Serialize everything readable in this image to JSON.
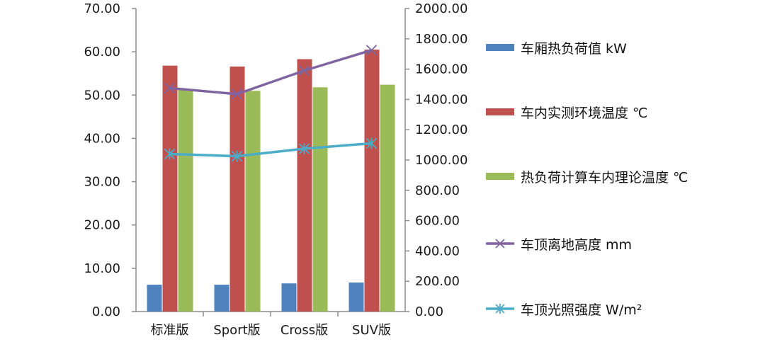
{
  "chart_data": {
    "type": "bar",
    "title": "",
    "categories": [
      "标准版",
      "Sport版",
      "Cross版",
      "SUV版"
    ],
    "y_left": {
      "ylim": [
        0,
        70
      ],
      "ticks": [
        "0.00",
        "10.00",
        "20.00",
        "30.00",
        "40.00",
        "50.00",
        "60.00",
        "70.00"
      ]
    },
    "y_right": {
      "ylim": [
        0,
        2000
      ],
      "ticks": [
        "0.00",
        "200.00",
        "400.00",
        "600.00",
        "800.00",
        "1000.00",
        "1200.00",
        "1400.00",
        "1600.00",
        "1800.00",
        "2000.00"
      ]
    },
    "series": [
      {
        "name": "车厢热负荷值 kW",
        "type": "bar",
        "axis": "left",
        "color": "#4f81bd",
        "values": [
          6.2,
          6.2,
          6.5,
          6.7
        ]
      },
      {
        "name": "车内实测环境温度 ℃",
        "type": "bar",
        "axis": "left",
        "color": "#c0504d",
        "values": [
          56.8,
          56.6,
          58.3,
          60.5
        ]
      },
      {
        "name": "热负荷计算车内理论温度 ℃",
        "type": "bar",
        "axis": "left",
        "color": "#9bbb59",
        "values": [
          51.2,
          51.0,
          51.8,
          52.4
        ]
      },
      {
        "name": "车顶离地高度 mm",
        "type": "line",
        "axis": "right",
        "color": "#8064a2",
        "marker": "x",
        "values": [
          1475,
          1435,
          1590,
          1725
        ]
      },
      {
        "name": "车顶光照强度 W/m²",
        "type": "line",
        "axis": "right",
        "color": "#4bacc6",
        "marker": "star",
        "values": [
          1040,
          1025,
          1075,
          1110
        ]
      }
    ],
    "legend_position": "right",
    "grid": false
  }
}
